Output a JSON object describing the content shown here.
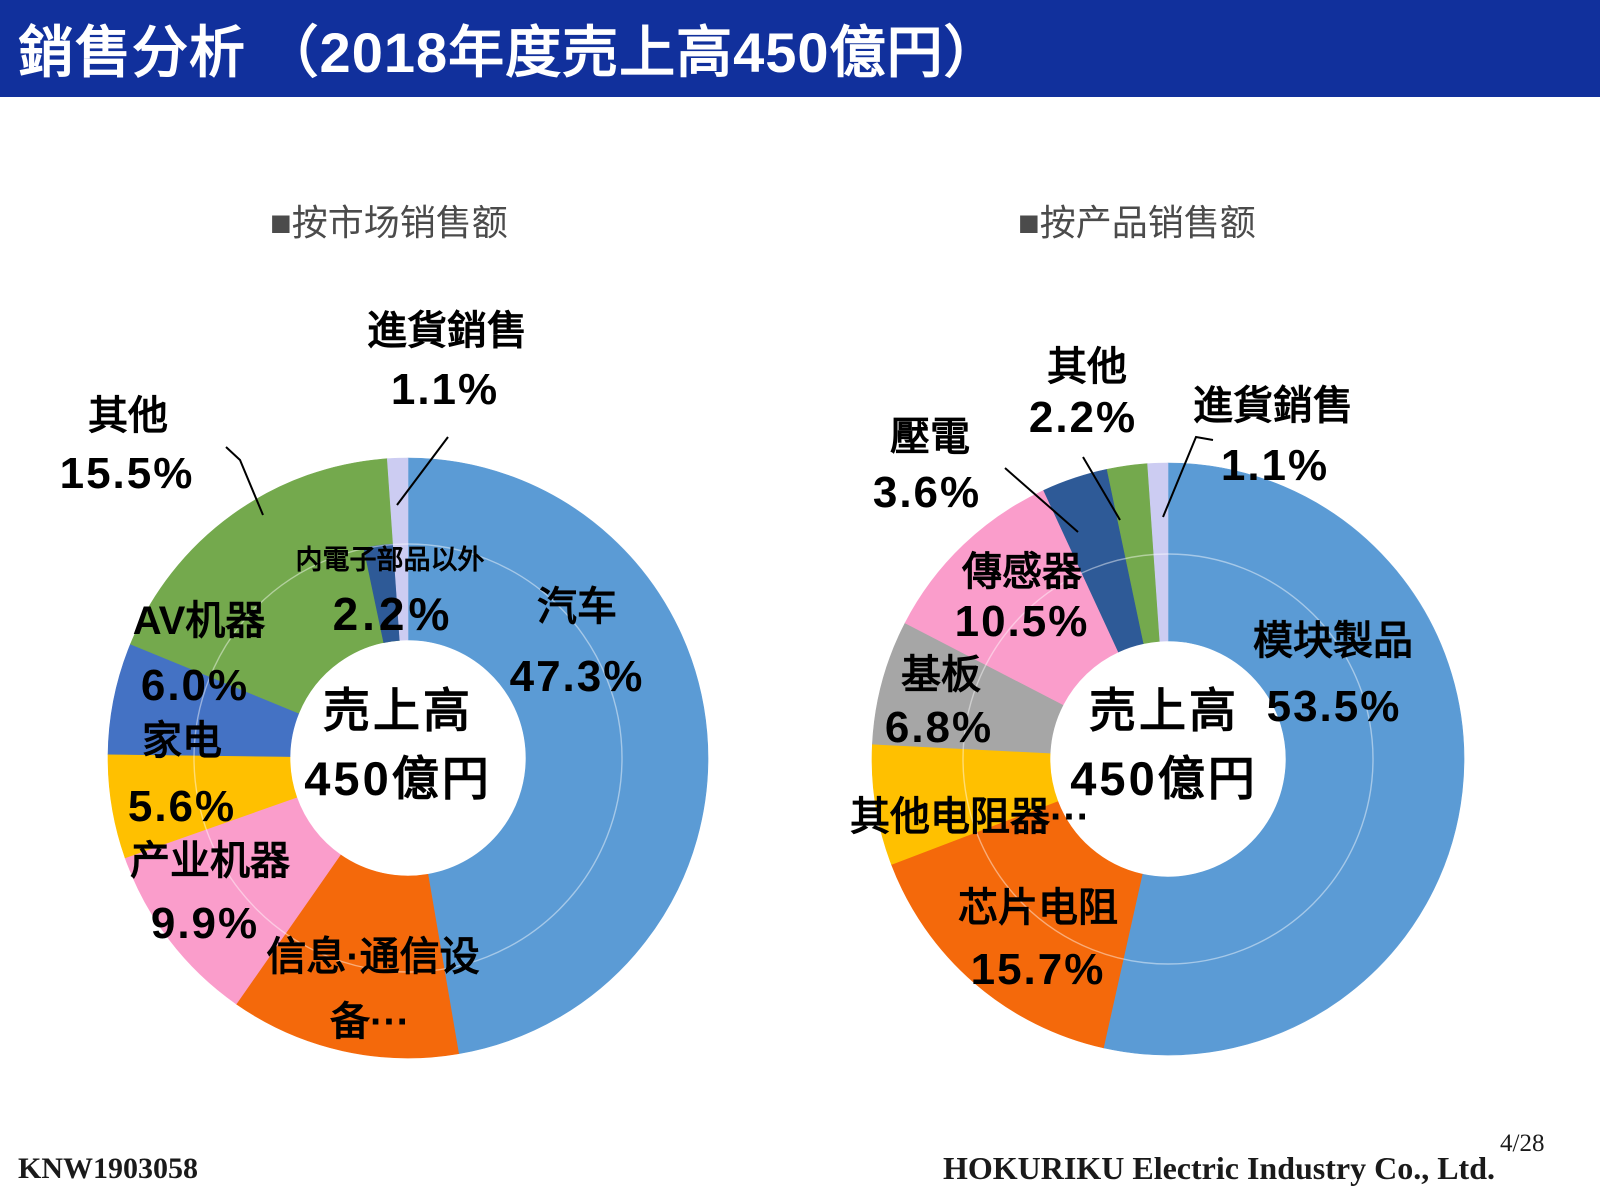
{
  "title": "銷售分析 （2018年度売上高450億円）",
  "charts": {
    "market": {
      "heading": "■按市场销售额",
      "center": {
        "line1": "売上高",
        "line2": "450億円"
      },
      "labels": {
        "automotive": {
          "name": "汽车",
          "pct": "47.3%"
        },
        "info_comm": {
          "line1": "信息·通信设",
          "line2": "备···"
        },
        "industrial": {
          "name": "产业机器",
          "pct": "9.9%"
        },
        "home_appliance": {
          "name": "家电",
          "pct": "5.6%"
        },
        "av_equipment": {
          "name": "AV机器",
          "pct": "6.0%"
        },
        "others": {
          "name": "其他",
          "pct": "15.5%"
        },
        "non_internal_electronic": {
          "name": "内電子部品以外",
          "pct": "2.2%"
        },
        "purchased_goods": {
          "name": "進貨銷售",
          "pct": "1.1%"
        }
      }
    },
    "product": {
      "heading": "■按产品销售额",
      "center": {
        "line1": "売上高",
        "line2": "450億円"
      },
      "labels": {
        "module": {
          "name": "模块製品",
          "pct": "53.5%"
        },
        "chip_resistor": {
          "name": "芯片电阻",
          "pct": "15.7%"
        },
        "other_resistors": {
          "name": "其他电阻器···"
        },
        "substrate": {
          "name": "基板",
          "pct": "6.8%"
        },
        "sensor": {
          "name": "傳感器",
          "pct": "10.5%"
        },
        "piezo": {
          "name": "壓電",
          "pct": "3.6%"
        },
        "others": {
          "name": "其他",
          "pct": "2.2%"
        },
        "purchased_goods": {
          "name": "進貨銷售",
          "pct": "1.1%"
        }
      }
    }
  },
  "footer": {
    "doc_id": "KNW1903058",
    "company": "HOKURIKU Electric Industry Co., Ltd.",
    "page": "4/28"
  },
  "colors": {
    "title_bar": "#11309C",
    "heading_text": "#4B4B4B",
    "label_text": "#000000"
  },
  "chart_data": [
    {
      "type": "pie",
      "subtype": "donut",
      "title": "按市场销售额",
      "center_label": "売上高 450億円",
      "slices": [
        {
          "label": "汽车",
          "value": 47.3,
          "color": "#5B9BD5"
        },
        {
          "label": "信息·通信设备···",
          "value": 12.4,
          "color": "#F4690B",
          "value_note": "percent not shown; remainder to 100%"
        },
        {
          "label": "产业机器",
          "value": 9.9,
          "color": "#FA9DCB"
        },
        {
          "label": "家电",
          "value": 5.6,
          "color": "#FFC000"
        },
        {
          "label": "AV机器",
          "value": 6.0,
          "color": "#4472C4"
        },
        {
          "label": "其他",
          "value": 15.5,
          "color": "#74A94D",
          "draw": 17.7
        },
        {
          "label": "内電子部品以外",
          "value": 2.2,
          "color": "#2E5A97",
          "outer_frac": 0.715
        },
        {
          "label": "進貨銷售",
          "value": 1.1,
          "color": "#CCCCF2"
        }
      ]
    },
    {
      "type": "pie",
      "subtype": "donut",
      "title": "按产品销售额",
      "center_label": "売上高 450億円",
      "slices": [
        {
          "label": "模块製品",
          "value": 53.5,
          "color": "#5B9BD5"
        },
        {
          "label": "芯片电阻",
          "value": 15.7,
          "color": "#F4690B"
        },
        {
          "label": "其他电阻器···",
          "value": 6.6,
          "color": "#FFC000",
          "value_note": "percent not shown; remainder to 100%"
        },
        {
          "label": "基板",
          "value": 6.8,
          "color": "#A6A6A6"
        },
        {
          "label": "傳感器",
          "value": 10.5,
          "color": "#FA9DCB"
        },
        {
          "label": "壓電",
          "value": 3.6,
          "color": "#2E5A97"
        },
        {
          "label": "其他",
          "value": 2.2,
          "color": "#74A94D"
        },
        {
          "label": "進貨銷售",
          "value": 1.1,
          "color": "#CCCCF2"
        }
      ]
    }
  ]
}
